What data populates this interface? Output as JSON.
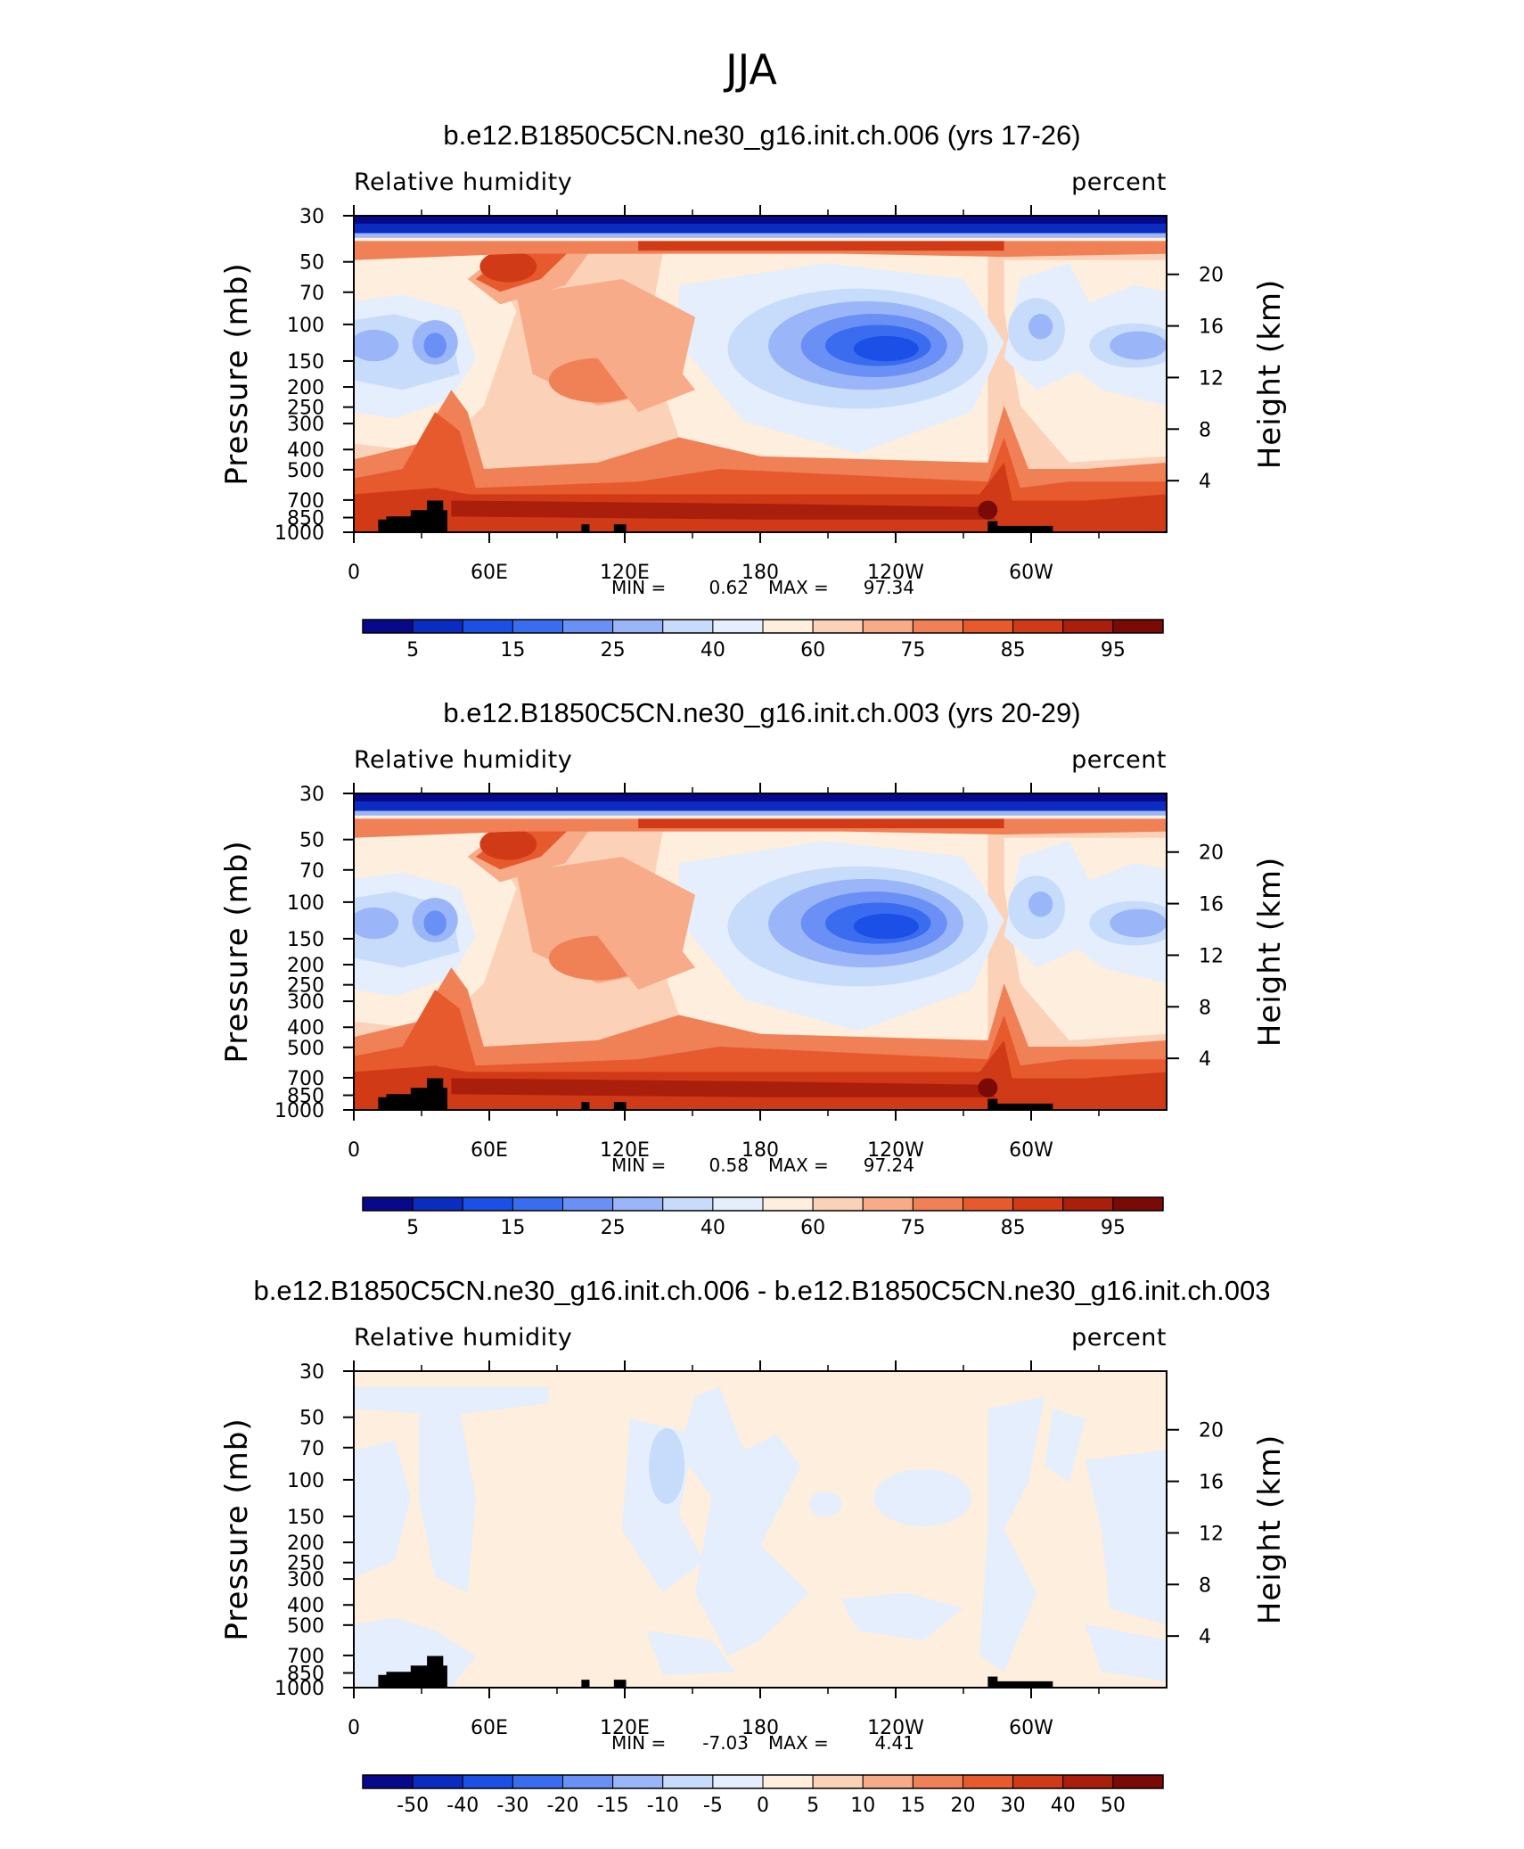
{
  "figure_title": "JJA",
  "colors": {
    "rh_palette": [
      "#08088a",
      "#0b2cc0",
      "#1c4fe6",
      "#3a6cf0",
      "#6a90f5",
      "#9ab6f8",
      "#c7dcfa",
      "#e4eefc",
      "#fdeedd",
      "#fbd2b8",
      "#f7ab88",
      "#f08055",
      "#e65a2e",
      "#d13a16",
      "#aa1e0c",
      "#7a0a06"
    ],
    "diff_palette": [
      "#08088a",
      "#0b2cc0",
      "#1c4fe6",
      "#3a6cf0",
      "#6a90f5",
      "#9ab6f8",
      "#c7dcfa",
      "#e4eefc",
      "#fdeedd",
      "#fbd2b8",
      "#f7ab88",
      "#f08055",
      "#e65a2e",
      "#d13a16",
      "#aa1e0c",
      "#7a0a06"
    ],
    "terrain": "#000000"
  },
  "chart_data": [
    {
      "type": "heatmap",
      "title": "b.e12.B1850C5CN.ne30_g16.init.ch.006 (yrs 17-26)",
      "left_label": "Relative humidity",
      "right_label": "percent",
      "ylabel": "Pressure (mb)",
      "y2label": "Height (km)",
      "x_tick_labels": [
        "0",
        "60E",
        "120E",
        "180",
        "120W",
        "60W"
      ],
      "y_tick_labels": [
        "30",
        "50",
        "70",
        "100",
        "150",
        "200",
        "250",
        "300",
        "400",
        "500",
        "700",
        "850",
        "1000"
      ],
      "y2_tick_labels": [
        "20",
        "16",
        "12",
        "8",
        "4"
      ],
      "stats": {
        "min_label": "MIN =",
        "min": "0.62",
        "max_label": "MAX =",
        "max": "97.34"
      },
      "colorbar_labels": [
        "5",
        "15",
        "25",
        "40",
        "60",
        "75",
        "85",
        "95"
      ],
      "palette": "rh"
    },
    {
      "type": "heatmap",
      "title": "b.e12.B1850C5CN.ne30_g16.init.ch.003 (yrs 20-29)",
      "left_label": "Relative humidity",
      "right_label": "percent",
      "ylabel": "Pressure (mb)",
      "y2label": "Height (km)",
      "x_tick_labels": [
        "0",
        "60E",
        "120E",
        "180",
        "120W",
        "60W"
      ],
      "y_tick_labels": [
        "30",
        "50",
        "70",
        "100",
        "150",
        "200",
        "250",
        "300",
        "400",
        "500",
        "700",
        "850",
        "1000"
      ],
      "y2_tick_labels": [
        "20",
        "16",
        "12",
        "8",
        "4"
      ],
      "stats": {
        "min_label": "MIN =",
        "min": "0.58",
        "max_label": "MAX =",
        "max": "97.24"
      },
      "colorbar_labels": [
        "5",
        "15",
        "25",
        "40",
        "60",
        "75",
        "85",
        "95"
      ],
      "palette": "rh"
    },
    {
      "type": "heatmap",
      "title": "b.e12.B1850C5CN.ne30_g16.init.ch.006 - b.e12.B1850C5CN.ne30_g16.init.ch.003",
      "left_label": "Relative humidity",
      "right_label": "percent",
      "ylabel": "Pressure (mb)",
      "y2label": "Height (km)",
      "x_tick_labels": [
        "0",
        "60E",
        "120E",
        "180",
        "120W",
        "60W"
      ],
      "y_tick_labels": [
        "30",
        "50",
        "70",
        "100",
        "150",
        "200",
        "250",
        "300",
        "400",
        "500",
        "700",
        "850",
        "1000"
      ],
      "y2_tick_labels": [
        "20",
        "16",
        "12",
        "8",
        "4"
      ],
      "stats": {
        "min_label": "MIN =",
        "min": "-7.03",
        "max_label": "MAX =",
        "max": "4.41"
      },
      "colorbar_labels": [
        "-50",
        "-40",
        "-30",
        "-20",
        "-15",
        "-10",
        "-5",
        "0",
        "5",
        "10",
        "15",
        "20",
        "30",
        "40",
        "50"
      ],
      "palette": "diff"
    }
  ]
}
